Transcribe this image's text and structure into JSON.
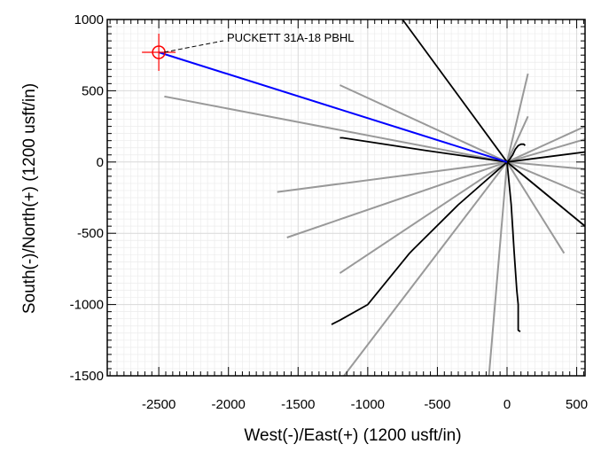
{
  "chart_data": {
    "type": "line",
    "title": "",
    "xlabel": "West(-)/East(+) (1200 usft/in)",
    "ylabel": "South(-)/North(+) (1200 usft/in)",
    "xlim": [
      -2870,
      560
    ],
    "ylim": [
      -1500,
      1000
    ],
    "xticks": [
      -2500,
      -2000,
      -1500,
      -1000,
      -500,
      0,
      500
    ],
    "yticks": [
      1000,
      500,
      0,
      -500,
      -1000,
      -1500
    ],
    "grid": true,
    "legend": "none",
    "colors": {
      "grid": "#d9d9d9",
      "planned": "#0000ff",
      "wells_black": "#000000",
      "wells_gray": "#999999",
      "target": "#ff0000"
    },
    "planned_path": {
      "color": "#0000ff",
      "x": [
        0,
        -2500
      ],
      "y": [
        0,
        770
      ]
    },
    "target": {
      "label": "PUCKETT 31A-18 PBHL",
      "x": -2500,
      "y": 770
    },
    "black_series": [
      {
        "x": [
          0,
          -750
        ],
        "y": [
          0,
          1000
        ]
      },
      {
        "x": [
          0,
          -580,
          -1180,
          -1200
        ],
        "y": [
          0,
          80,
          170,
          170
        ]
      },
      {
        "x": [
          0,
          560
        ],
        "y": [
          0,
          70
        ]
      },
      {
        "x": [
          0,
          560
        ],
        "y": [
          0,
          -450
        ]
      },
      {
        "x": [
          0,
          20,
          40,
          60,
          80,
          100,
          120,
          130
        ],
        "y": [
          0,
          20,
          50,
          90,
          115,
          125,
          125,
          115
        ]
      },
      {
        "x": [
          0,
          -350,
          -680,
          -700,
          -1000,
          -1200,
          -1260
        ],
        "y": [
          0,
          -300,
          -620,
          -640,
          -1000,
          -1110,
          -1140
        ]
      },
      {
        "x": [
          0,
          30,
          50,
          70,
          80,
          80,
          95
        ],
        "y": [
          0,
          -300,
          -620,
          -900,
          -1000,
          -1180,
          -1190
        ]
      }
    ],
    "gray_series": [
      {
        "x": [
          0,
          -2460
        ],
        "y": [
          0,
          460
        ]
      },
      {
        "x": [
          0,
          -1200
        ],
        "y": [
          0,
          540
        ]
      },
      {
        "x": [
          0,
          -1650
        ],
        "y": [
          0,
          -210
        ]
      },
      {
        "x": [
          0,
          -1580
        ],
        "y": [
          0,
          -530
        ]
      },
      {
        "x": [
          0,
          -1200
        ],
        "y": [
          0,
          -780
        ]
      },
      {
        "x": [
          0,
          -1170
        ],
        "y": [
          0,
          -1500
        ]
      },
      {
        "x": [
          0,
          -130
        ],
        "y": [
          0,
          -1500
        ]
      },
      {
        "x": [
          0,
          410
        ],
        "y": [
          0,
          -640
        ]
      },
      {
        "x": [
          0,
          560
        ],
        "y": [
          0,
          -450
        ]
      },
      {
        "x": [
          0,
          560
        ],
        "y": [
          0,
          -230
        ]
      },
      {
        "x": [
          0,
          560
        ],
        "y": [
          0,
          -50
        ]
      },
      {
        "x": [
          0,
          560
        ],
        "y": [
          0,
          160
        ]
      },
      {
        "x": [
          0,
          560
        ],
        "y": [
          0,
          250
        ]
      },
      {
        "x": [
          0,
          150
        ],
        "y": [
          0,
          620
        ]
      },
      {
        "x": [
          0,
          150
        ],
        "y": [
          0,
          320
        ]
      }
    ]
  }
}
